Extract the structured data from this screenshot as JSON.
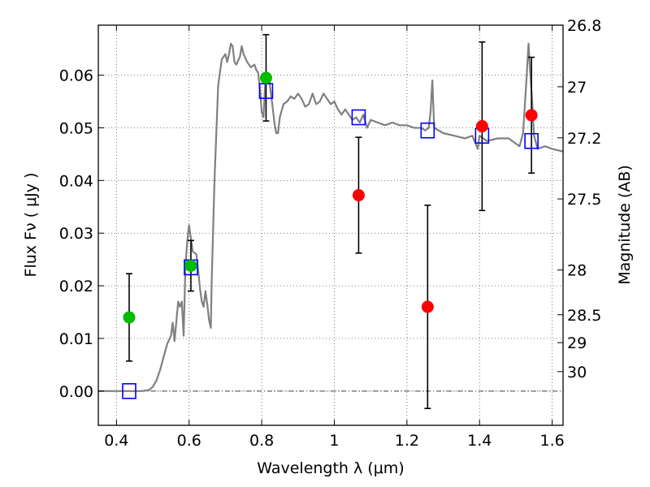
{
  "chart_data": {
    "type": "scatter",
    "title": "",
    "xlabel": "Wavelength  λ (μm)",
    "ylabel": "Flux  Fν  ( μJy )",
    "y2label": "Magnitude (AB)",
    "xlim": [
      0.35,
      1.63
    ],
    "ylim": [
      -0.0065,
      0.0695
    ],
    "grid": true,
    "x_ticks": [
      0.4,
      0.6,
      0.8,
      1.0,
      1.2,
      1.4,
      1.6
    ],
    "x_tick_labels": [
      "0.4",
      "0.6",
      "0.8",
      "1",
      "1.2",
      "1.4",
      "1.6"
    ],
    "y_ticks": [
      0.0,
      0.01,
      0.02,
      0.03,
      0.04,
      0.05,
      0.06
    ],
    "y_tick_labels": [
      "0.00",
      "0.01",
      "0.02",
      "0.03",
      "0.04",
      "0.05",
      "0.06"
    ],
    "mag_ticks": [
      {
        "label": "26.8",
        "flux": 0.0695
      },
      {
        "label": "27",
        "flux": 0.0578
      },
      {
        "label": "27.2",
        "flux": 0.0481
      },
      {
        "label": "27.5",
        "flux": 0.0365
      },
      {
        "label": "28",
        "flux": 0.023
      },
      {
        "label": "28.5",
        "flux": 0.0145
      },
      {
        "label": "29",
        "flux": 0.0092
      },
      {
        "label": "30",
        "flux": 0.0037
      }
    ],
    "colors": {
      "model": "#808080",
      "synthetic": "#0000ff",
      "detections": "#00bb00",
      "upper_limits": "#ff0000",
      "errorbar": "#000000",
      "grid": "#555555"
    },
    "series": [
      {
        "name": "model spectrum",
        "type": "line",
        "points": [
          [
            0.35,
            0.0
          ],
          [
            0.47,
            0.0
          ],
          [
            0.49,
            0.0002
          ],
          [
            0.5,
            0.0008
          ],
          [
            0.51,
            0.002
          ],
          [
            0.52,
            0.004
          ],
          [
            0.53,
            0.0065
          ],
          [
            0.54,
            0.009
          ],
          [
            0.55,
            0.0105
          ],
          [
            0.555,
            0.013
          ],
          [
            0.56,
            0.0095
          ],
          [
            0.57,
            0.017
          ],
          [
            0.575,
            0.016
          ],
          [
            0.58,
            0.017
          ],
          [
            0.585,
            0.0105
          ],
          [
            0.59,
            0.024
          ],
          [
            0.595,
            0.0285
          ],
          [
            0.6,
            0.0315
          ],
          [
            0.605,
            0.029
          ],
          [
            0.61,
            0.0265
          ],
          [
            0.62,
            0.026
          ],
          [
            0.625,
            0.023
          ],
          [
            0.63,
            0.0195
          ],
          [
            0.635,
            0.017
          ],
          [
            0.64,
            0.016
          ],
          [
            0.645,
            0.019
          ],
          [
            0.65,
            0.0165
          ],
          [
            0.655,
            0.0135
          ],
          [
            0.66,
            0.012
          ],
          [
            0.662,
            0.02
          ],
          [
            0.67,
            0.04
          ],
          [
            0.68,
            0.058
          ],
          [
            0.69,
            0.063
          ],
          [
            0.7,
            0.064
          ],
          [
            0.705,
            0.0625
          ],
          [
            0.71,
            0.064
          ],
          [
            0.715,
            0.066
          ],
          [
            0.72,
            0.0655
          ],
          [
            0.725,
            0.0625
          ],
          [
            0.73,
            0.062
          ],
          [
            0.74,
            0.0635
          ],
          [
            0.745,
            0.0655
          ],
          [
            0.75,
            0.064
          ],
          [
            0.76,
            0.0625
          ],
          [
            0.77,
            0.0615
          ],
          [
            0.78,
            0.062
          ],
          [
            0.785,
            0.061
          ],
          [
            0.79,
            0.0605
          ],
          [
            0.795,
            0.0575
          ],
          [
            0.8,
            0.053
          ],
          [
            0.805,
            0.052
          ],
          [
            0.81,
            0.059
          ],
          [
            0.82,
            0.0595
          ],
          [
            0.83,
            0.054
          ],
          [
            0.835,
            0.051
          ],
          [
            0.84,
            0.049
          ],
          [
            0.845,
            0.049
          ],
          [
            0.85,
            0.052
          ],
          [
            0.86,
            0.0545
          ],
          [
            0.87,
            0.055
          ],
          [
            0.88,
            0.056
          ],
          [
            0.89,
            0.0555
          ],
          [
            0.9,
            0.0565
          ],
          [
            0.91,
            0.0555
          ],
          [
            0.92,
            0.054
          ],
          [
            0.93,
            0.0545
          ],
          [
            0.94,
            0.0565
          ],
          [
            0.95,
            0.0545
          ],
          [
            0.96,
            0.055
          ],
          [
            0.97,
            0.0565
          ],
          [
            0.98,
            0.0555
          ],
          [
            0.99,
            0.0545
          ],
          [
            1.0,
            0.055
          ],
          [
            1.01,
            0.0535
          ],
          [
            1.02,
            0.0525
          ],
          [
            1.03,
            0.0535
          ],
          [
            1.04,
            0.0525
          ],
          [
            1.05,
            0.0515
          ],
          [
            1.06,
            0.052
          ],
          [
            1.07,
            0.051
          ],
          [
            1.08,
            0.0525
          ],
          [
            1.09,
            0.05
          ],
          [
            1.1,
            0.0515
          ],
          [
            1.12,
            0.051
          ],
          [
            1.14,
            0.0505
          ],
          [
            1.16,
            0.051
          ],
          [
            1.18,
            0.0505
          ],
          [
            1.2,
            0.0505
          ],
          [
            1.22,
            0.05
          ],
          [
            1.24,
            0.05
          ],
          [
            1.25,
            0.0495
          ],
          [
            1.26,
            0.05
          ],
          [
            1.265,
            0.053
          ],
          [
            1.27,
            0.059
          ],
          [
            1.275,
            0.05
          ],
          [
            1.3,
            0.049
          ],
          [
            1.33,
            0.0485
          ],
          [
            1.36,
            0.048
          ],
          [
            1.38,
            0.0485
          ],
          [
            1.395,
            0.046
          ],
          [
            1.4,
            0.0485
          ],
          [
            1.42,
            0.0475
          ],
          [
            1.45,
            0.048
          ],
          [
            1.48,
            0.048
          ],
          [
            1.5,
            0.047
          ],
          [
            1.51,
            0.0465
          ],
          [
            1.52,
            0.049
          ],
          [
            1.53,
            0.06
          ],
          [
            1.535,
            0.066
          ],
          [
            1.54,
            0.06
          ],
          [
            1.545,
            0.055
          ],
          [
            1.55,
            0.0485
          ],
          [
            1.56,
            0.046
          ],
          [
            1.58,
            0.0465
          ],
          [
            1.6,
            0.046
          ],
          [
            1.63,
            0.0455
          ]
        ]
      },
      {
        "name": "synthetic photometry",
        "type": "square",
        "points": [
          [
            0.435,
            0.0
          ],
          [
            0.605,
            0.0235
          ],
          [
            0.812,
            0.057
          ],
          [
            1.067,
            0.052
          ],
          [
            1.257,
            0.0495
          ],
          [
            1.407,
            0.0485
          ],
          [
            1.543,
            0.0475
          ]
        ]
      },
      {
        "name": "detections",
        "type": "point",
        "points": [
          {
            "x": 0.435,
            "y": 0.014,
            "err": 0.0083
          },
          {
            "x": 0.605,
            "y": 0.0238,
            "err": 0.0048
          },
          {
            "x": 0.812,
            "y": 0.0595,
            "err": 0.0082
          }
        ]
      },
      {
        "name": "upper limits",
        "type": "point",
        "points": [
          {
            "x": 1.067,
            "y": 0.0372,
            "err": 0.011
          },
          {
            "x": 1.257,
            "y": 0.016,
            "err": 0.0193
          },
          {
            "x": 1.407,
            "y": 0.0503,
            "err": 0.016
          },
          {
            "x": 1.543,
            "y": 0.0524,
            "err": 0.011
          }
        ]
      }
    ]
  }
}
